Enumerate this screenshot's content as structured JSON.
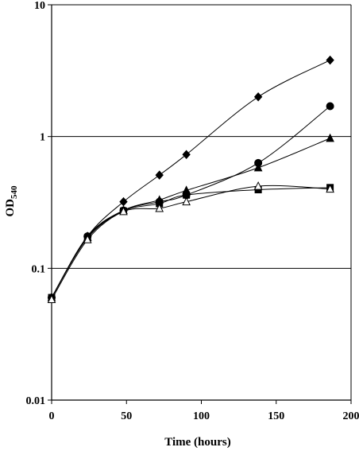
{
  "chart_data": {
    "type": "line",
    "title": "",
    "xlabel": "Time (hours)",
    "ylabel_main": "OD",
    "ylabel_sub": "540",
    "xlim": [
      0,
      200
    ],
    "ylim": [
      0.01,
      10
    ],
    "y_scale": "log",
    "x_ticks": [
      0,
      50,
      100,
      150,
      200
    ],
    "x_tick_labels": [
      "0",
      "50",
      "100",
      "150",
      "200"
    ],
    "y_ticks": [
      0.01,
      0.1,
      1,
      10
    ],
    "y_tick_labels": [
      "0.01",
      "0.1",
      "1",
      "10"
    ],
    "horizontal_grid": true,
    "legend": "none",
    "series": [
      {
        "marker": "filled-diamond",
        "x": [
          0,
          24,
          48,
          72,
          90,
          138,
          186
        ],
        "y": [
          0.06,
          0.175,
          0.32,
          0.51,
          0.73,
          2.0,
          3.8
        ]
      },
      {
        "marker": "filled-circle",
        "x": [
          0,
          24,
          48,
          72,
          90,
          138,
          186
        ],
        "y": [
          0.06,
          0.175,
          0.275,
          0.32,
          0.36,
          0.63,
          1.7
        ]
      },
      {
        "marker": "filled-triangle",
        "x": [
          0,
          24,
          48,
          72,
          90,
          138,
          186
        ],
        "y": [
          0.06,
          0.172,
          0.275,
          0.33,
          0.39,
          0.58,
          0.97
        ]
      },
      {
        "marker": "filled-square",
        "x": [
          0,
          24,
          48,
          72,
          90,
          138,
          186
        ],
        "y": [
          0.06,
          0.17,
          0.272,
          0.31,
          0.36,
          0.395,
          0.41
        ]
      },
      {
        "marker": "open-triangle",
        "x": [
          0,
          24,
          48,
          72,
          90,
          138,
          186
        ],
        "y": [
          0.058,
          0.165,
          0.27,
          0.285,
          0.32,
          0.42,
          0.4
        ]
      }
    ]
  }
}
